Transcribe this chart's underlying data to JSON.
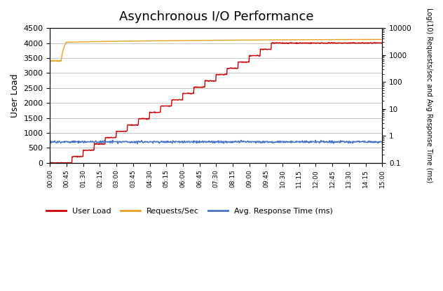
{
  "title": "Asynchronous I/O Performance",
  "ylabel_left": "User Load",
  "ylabel_right": "Log(10) Requests/sec and Avg Response Time (ms)",
  "ylim_left": [
    0,
    4500
  ],
  "background_color": "#ffffff",
  "plot_bg_color": "#ffffff",
  "grid_color": "#b0b0b0",
  "line_colors": {
    "user_load": "#cc0000",
    "requests_sec": "#e8a020",
    "avg_response": "#4472c4"
  },
  "legend_labels": [
    "User Load",
    "Requests/Sec",
    "Avg. Response Time (ms)"
  ],
  "x_tick_labels": [
    "00:00",
    "00:45",
    "01:30",
    "02:15",
    "03:00",
    "03:45",
    "04:30",
    "05:15",
    "06:00",
    "06:45",
    "07:30",
    "08:15",
    "09:00",
    "09:45",
    "10:30",
    "11:15",
    "12:00",
    "12:45",
    "13:30",
    "14:15",
    "15:00"
  ],
  "num_points": 901,
  "time_total_minutes": 15,
  "requests_sec_initial": 600,
  "requests_sec_jump": 3000,
  "requests_sec_final": 3800,
  "avg_response_value": 0.6,
  "user_load_final": 4000
}
